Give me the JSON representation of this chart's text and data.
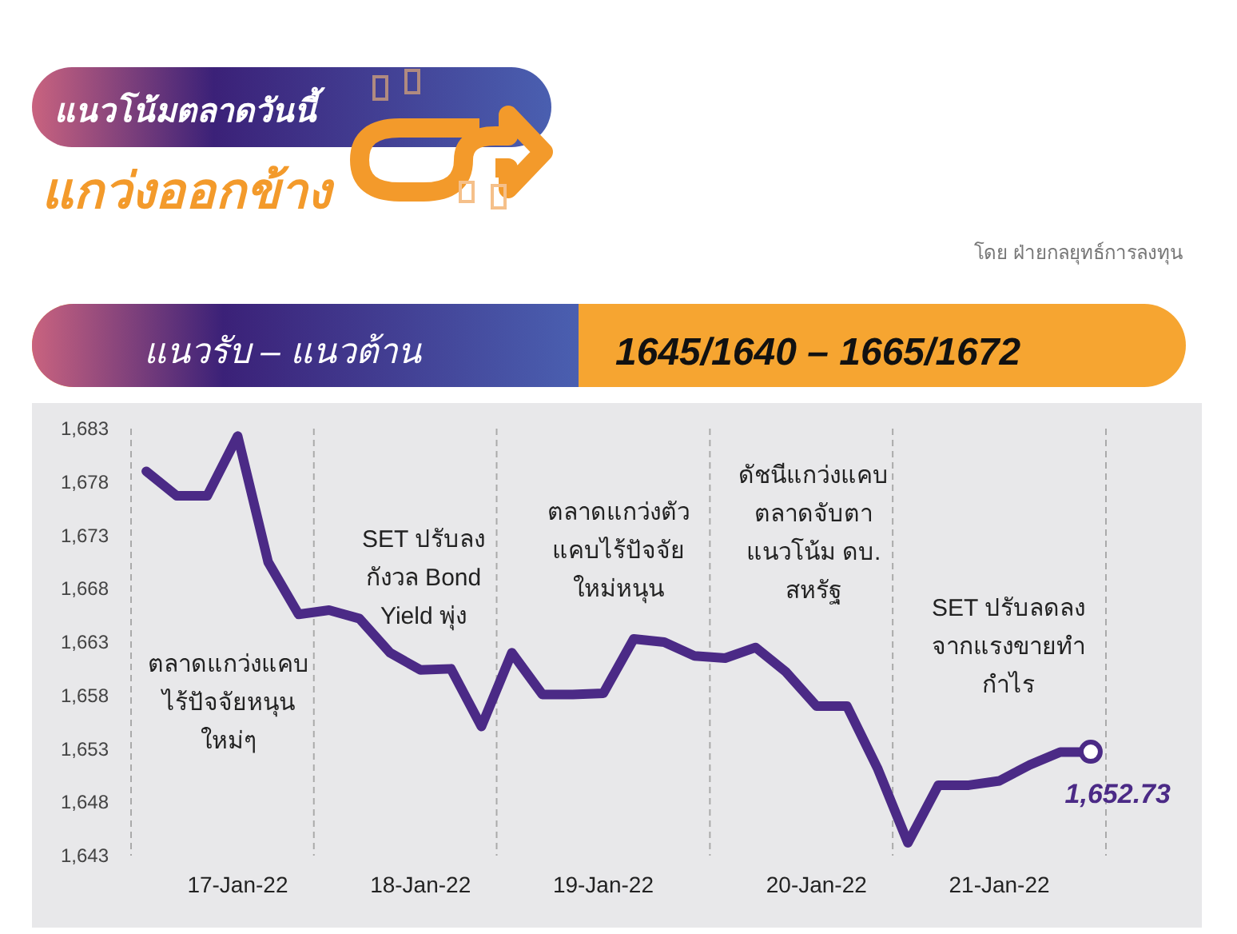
{
  "chart_data": {
    "type": "line",
    "title": "แนวโน้มตลาดวันนี้",
    "subtitle": "แกว่งออกข้าง",
    "annotations": [
      "ตลาดแกว่งแคบ\nไร้ปัจจัยหนุน\nใหม่ๆ",
      "SET ปรับลง\nกังวล Bond\nYield พุ่ง",
      "ตลาดแกว่งตัว\nแคบไร้ปัจจัย\nใหม่หนุน",
      "ดัชนีแกว่งแคบ\nตลาดจับตา\nแนวโน้ม ดบ.\nสหรัฐ",
      "SET ปรับลดลง\nจากแรงขายทำ\nกำไร",
      "แนวรับ – แนวต้าน",
      "1645/1640  –  1665/1672",
      "โดย ฝ่ายกลยุทธ์การลงทุน"
    ],
    "categories": [
      null,
      null,
      null,
      "17-Jan-22",
      null,
      null,
      null,
      null,
      null,
      "18-Jan-22",
      null,
      null,
      null,
      null,
      null,
      "19-Jan-22",
      null,
      null,
      null,
      null,
      null,
      null,
      "20-Jan-22",
      null,
      null,
      null,
      null,
      null,
      "21-Jan-22",
      null,
      null,
      null
    ],
    "series": [
      {
        "color": "#4b2a86",
        "marker": "none",
        "values": [
          1679.0,
          1676.7,
          1676.7,
          1682.3,
          1670.5,
          1665.6,
          1666.0,
          1665.2,
          1662.0,
          1660.4,
          1660.5,
          1655.1,
          1662.0,
          1658.1,
          1658.1,
          1658.2,
          1663.3,
          1663.0,
          1661.7,
          1661.5,
          1662.5,
          1660.2,
          1657.0,
          1657.0,
          1651.2,
          1644.2,
          1649.6,
          1649.6,
          1650.0,
          1651.5,
          1652.7,
          1652.7
        ]
      },
      {
        "type": "scatter",
        "color": "#4b2a86",
        "marker": "circle",
        "values": [
          null,
          null,
          null,
          null,
          null,
          null,
          null,
          null,
          null,
          null,
          null,
          null,
          null,
          null,
          null,
          null,
          null,
          null,
          null,
          null,
          null,
          null,
          null,
          null,
          null,
          null,
          null,
          null,
          null,
          null,
          null,
          1652.73
        ],
        "value_labels": [
          null,
          null,
          null,
          null,
          null,
          null,
          null,
          null,
          null,
          null,
          null,
          null,
          null,
          null,
          null,
          null,
          null,
          null,
          null,
          null,
          null,
          null,
          null,
          null,
          null,
          null,
          null,
          null,
          null,
          null,
          null,
          "1,652.73"
        ]
      }
    ],
    "ylim": [
      1643,
      1683
    ],
    "yticks": [
      {
        "value": 1643,
        "label": "1,643"
      },
      {
        "value": 1648,
        "label": "1,648"
      },
      {
        "value": 1653,
        "label": "1,653"
      },
      {
        "value": 1658,
        "label": "1,658"
      },
      {
        "value": 1663,
        "label": "1,663"
      },
      {
        "value": 1668,
        "label": "1,668"
      },
      {
        "value": 1673,
        "label": "1,673"
      },
      {
        "value": 1678,
        "label": "1,678"
      },
      {
        "value": 1683,
        "label": "1,683"
      }
    ],
    "grid": false
  }
}
